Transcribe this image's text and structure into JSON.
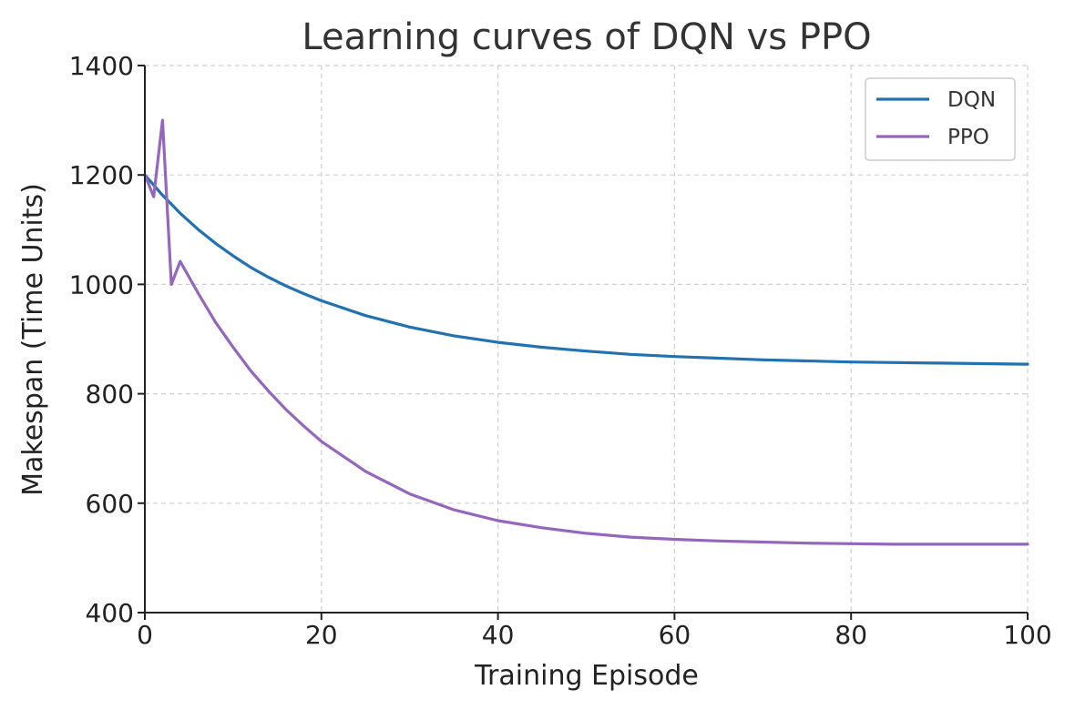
{
  "chart_data": {
    "type": "line",
    "title": "Learning curves of DQN vs PPO",
    "xlabel": "Training Episode",
    "ylabel": "Makespan (Time Units)",
    "xlim": [
      0,
      100
    ],
    "ylim": [
      400,
      1400
    ],
    "xticks": [
      0,
      20,
      40,
      60,
      80,
      100
    ],
    "yticks": [
      400,
      600,
      800,
      1000,
      1200,
      1400
    ],
    "grid": true,
    "legend_position": "top-right",
    "series": [
      {
        "name": "DQN",
        "color": "#2271b0",
        "x": [
          0,
          2,
          4,
          6,
          8,
          10,
          12,
          14,
          16,
          18,
          20,
          25,
          30,
          35,
          40,
          45,
          50,
          55,
          60,
          65,
          70,
          75,
          80,
          85,
          90,
          95,
          100
        ],
        "values": [
          1200,
          1163,
          1130,
          1101,
          1075,
          1052,
          1031,
          1013,
          997,
          983,
          970,
          943,
          922,
          906,
          894,
          885,
          878,
          872,
          868,
          865,
          862,
          860,
          858,
          857,
          856,
          855,
          854
        ]
      },
      {
        "name": "PPO",
        "color": "#9467bd",
        "x": [
          0,
          1,
          2,
          3,
          4,
          6,
          8,
          10,
          12,
          14,
          16,
          18,
          20,
          25,
          30,
          35,
          40,
          45,
          50,
          55,
          60,
          65,
          70,
          75,
          80,
          85,
          90,
          95,
          100
        ],
        "values": [
          1200,
          1160,
          1300,
          1000,
          1042,
          985,
          931,
          885,
          842,
          805,
          771,
          741,
          713,
          658,
          617,
          588,
          568,
          555,
          545,
          538,
          534,
          531,
          529,
          527,
          526,
          525,
          525,
          525,
          525
        ]
      }
    ]
  }
}
